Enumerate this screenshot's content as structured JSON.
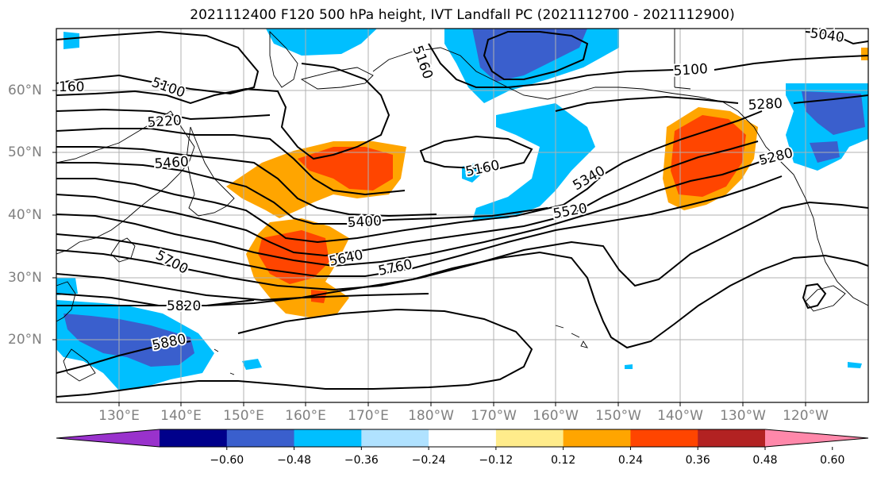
{
  "title": "2021112400 F120 500 hPa height, IVT Landfall PC (2021112700 - 2021112900)",
  "lat_labels": [
    "60°N",
    "50°N",
    "40°N",
    "30°N",
    "20°N"
  ],
  "lon_labels": [
    "130°E",
    "140°E",
    "150°E",
    "160°E",
    "170°E",
    "180°W",
    "170°W",
    "160°W",
    "150°W",
    "140°W",
    "130°W",
    "120°W"
  ],
  "contour_labels": [
    "160",
    "5100",
    "5220",
    "5460",
    "5700",
    "5820",
    "5880",
    "5400",
    "5640",
    "5760",
    "5160",
    "5520",
    "5340",
    "5100",
    "5280",
    "5280",
    "5040",
    "5160"
  ],
  "colorbar": {
    "ticks": [
      "−0.60",
      "−0.48",
      "−0.36",
      "−0.24",
      "−0.12",
      "0.12",
      "0.24",
      "0.36",
      "0.48",
      "0.60"
    ],
    "colors": [
      "#9932cc",
      "#00008b",
      "#3a5fcd",
      "#00bfff",
      "#b0e2ff",
      "#ffffff",
      "#ffec8b",
      "#ffa500",
      "#ff4500",
      "#b22222",
      "#ff88aa"
    ]
  }
}
